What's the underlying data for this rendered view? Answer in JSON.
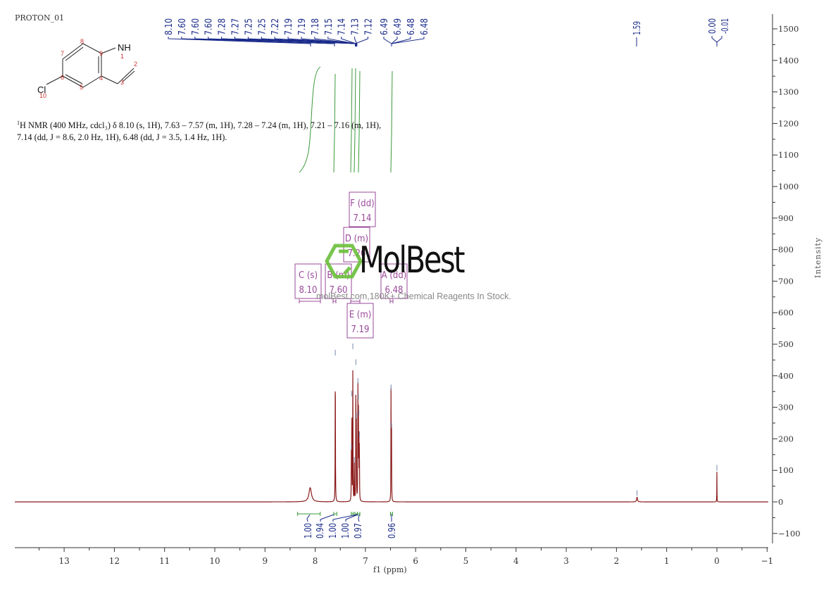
{
  "title": "PROTON_01",
  "structure": {
    "name": "5-chloroindole",
    "atoms": [
      "NH",
      "Cl"
    ],
    "atom_numbers": [
      "1",
      "2",
      "3",
      "4",
      "5",
      "6",
      "7",
      "8",
      "9",
      "10"
    ]
  },
  "nmr_description": {
    "line1_prefix": "1",
    "line1": "H NMR (400 MHz, cdcl₃) δ 8.10 (s, 1H), 7.63 – 7.57 (m, 1H), 7.28 – 7.24 (m, 1H), 7.21 – 7.16 (m, 1H),",
    "line2": "7.14 (dd, J = 8.6, 2.0 Hz, 1H), 6.48 (dd, J = 3.5, 1.4 Hz, 1H)."
  },
  "watermark": {
    "brand": "MolBest",
    "tagline": "molBest.com,180K+ Chemical Reagents In Stock.",
    "logo_color": "#6abf3a"
  },
  "colors": {
    "spectrum": "#8b1a1a",
    "peak_labels": "#1a2a8a",
    "integrals": "#3a9a3a",
    "multiplet_boxes": "#9a4a9a",
    "axis": "#333333"
  },
  "chart_data": {
    "type": "line",
    "title": "PROTON_01",
    "xlabel": "f1 (ppm)",
    "ylabel": "Intensity",
    "xlim": [
      14.0,
      -1.0
    ],
    "ylim": [
      -140,
      1540
    ],
    "x_reversed": true,
    "x_ticks": [
      13,
      12,
      11,
      10,
      9,
      8,
      7,
      6,
      5,
      4,
      3,
      2,
      1,
      0,
      -1
    ],
    "y_ticks": [
      -100,
      0,
      100,
      200,
      300,
      400,
      500,
      600,
      700,
      800,
      900,
      1000,
      1100,
      1200,
      1300,
      1400,
      1500
    ],
    "grid": false,
    "peaks": [
      {
        "ppm": 8.1,
        "intensity": 45,
        "width": 0.06
      },
      {
        "ppm": 7.6,
        "intensity": 460,
        "width": 0.006
      },
      {
        "ppm": 7.28,
        "intensity": 160,
        "width": 0.005
      },
      {
        "ppm": 7.27,
        "intensity": 330,
        "width": 0.005
      },
      {
        "ppm": 7.25,
        "intensity": 480,
        "width": 0.005
      },
      {
        "ppm": 7.22,
        "intensity": 120,
        "width": 0.005
      },
      {
        "ppm": 7.19,
        "intensity": 430,
        "width": 0.005
      },
      {
        "ppm": 7.18,
        "intensity": 260,
        "width": 0.005
      },
      {
        "ppm": 7.15,
        "intensity": 370,
        "width": 0.005
      },
      {
        "ppm": 7.14,
        "intensity": 320,
        "width": 0.005
      },
      {
        "ppm": 7.13,
        "intensity": 270,
        "width": 0.005
      },
      {
        "ppm": 7.12,
        "intensity": 200,
        "width": 0.005
      },
      {
        "ppm": 6.49,
        "intensity": 350,
        "width": 0.005
      },
      {
        "ppm": 6.48,
        "intensity": 230,
        "width": 0.005
      },
      {
        "ppm": 1.59,
        "intensity": 15,
        "width": 0.02
      },
      {
        "ppm": 0.0,
        "intensity": 95,
        "width": 0.004
      }
    ],
    "peak_labels": [
      "8.10",
      "7.60",
      "7.60",
      "7.60",
      "7.28",
      "7.27",
      "7.25",
      "7.25",
      "7.22",
      "7.19",
      "7.19",
      "7.18",
      "7.15",
      "7.14",
      "7.13",
      "7.12",
      "6.49",
      "6.49",
      "6.48",
      "6.48",
      "1.59",
      "0.00",
      "-0.01"
    ],
    "multiplets": [
      {
        "label": "C (s)",
        "shift": "8.10"
      },
      {
        "label": "B (m)",
        "shift": "7.60"
      },
      {
        "label": "D (m)",
        "shift": "7.26"
      },
      {
        "label": "E (m)",
        "shift": "7.19"
      },
      {
        "label": "F (dd)",
        "shift": "7.14"
      },
      {
        "label": "A (dd)",
        "shift": "6.48"
      }
    ],
    "integrals": [
      {
        "range": [
          8.35,
          7.9
        ],
        "value": "1.00"
      },
      {
        "range": [
          7.63,
          7.57
        ],
        "value": "0.94"
      },
      {
        "range": [
          7.28,
          7.24
        ],
        "value": "1.00"
      },
      {
        "range": [
          7.21,
          7.16
        ],
        "value": "1.00"
      },
      {
        "range": [
          7.16,
          7.11
        ],
        "value": "0.97"
      },
      {
        "range": [
          6.5,
          6.46
        ],
        "value": "0.96"
      }
    ]
  }
}
